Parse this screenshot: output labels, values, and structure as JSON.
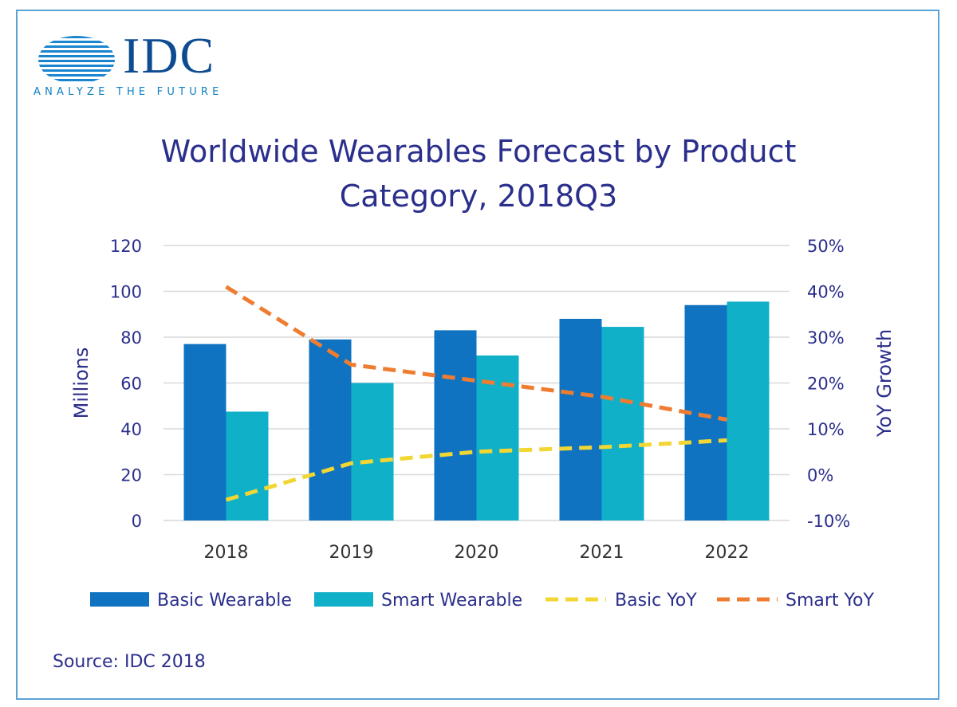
{
  "logo": {
    "wordmark": "IDC",
    "tagline": "ANALYZE THE FUTURE"
  },
  "source": "Source: IDC 2018",
  "colors": {
    "basic": "#0f73c1",
    "smart": "#10b0c9",
    "basic_yoy": "#f2d633",
    "smart_yoy": "#ee7d31",
    "text": "#2b2f8c",
    "grid": "#d9d9d9",
    "logo": "#0e4c92"
  },
  "chart_data": {
    "type": "bar",
    "title": "Worldwide Wearables Forecast by Product Category, 2018Q3",
    "title_lines": [
      "Worldwide Wearables Forecast by Product",
      "Category, 2018Q3"
    ],
    "categories": [
      "2018",
      "2019",
      "2020",
      "2021",
      "2022"
    ],
    "ylabel": "Millions",
    "y2label": "YoY Growth",
    "ylim": [
      0,
      120
    ],
    "y2lim": [
      -0.1,
      0.5
    ],
    "yticks": [
      "0",
      "20",
      "40",
      "60",
      "80",
      "100",
      "120"
    ],
    "y2ticks": [
      "-10%",
      "0%",
      "10%",
      "20%",
      "30%",
      "40%",
      "50%"
    ],
    "grid": true,
    "legend_position": "bottom",
    "series": [
      {
        "name": "Basic Wearable",
        "kind": "bar",
        "axis": "left",
        "values": [
          77,
          79,
          83,
          88,
          94
        ]
      },
      {
        "name": "Smart Wearable",
        "kind": "bar",
        "axis": "left",
        "values": [
          47.5,
          60,
          72,
          84.5,
          95.5
        ]
      },
      {
        "name": "Basic YoY",
        "kind": "line",
        "style": "dashed",
        "axis": "right",
        "values": [
          -0.055,
          0.025,
          0.05,
          0.06,
          0.075
        ]
      },
      {
        "name": "Smart YoY",
        "kind": "line",
        "style": "dashed",
        "axis": "right",
        "values": [
          0.41,
          0.24,
          0.205,
          0.17,
          0.12
        ]
      }
    ]
  }
}
